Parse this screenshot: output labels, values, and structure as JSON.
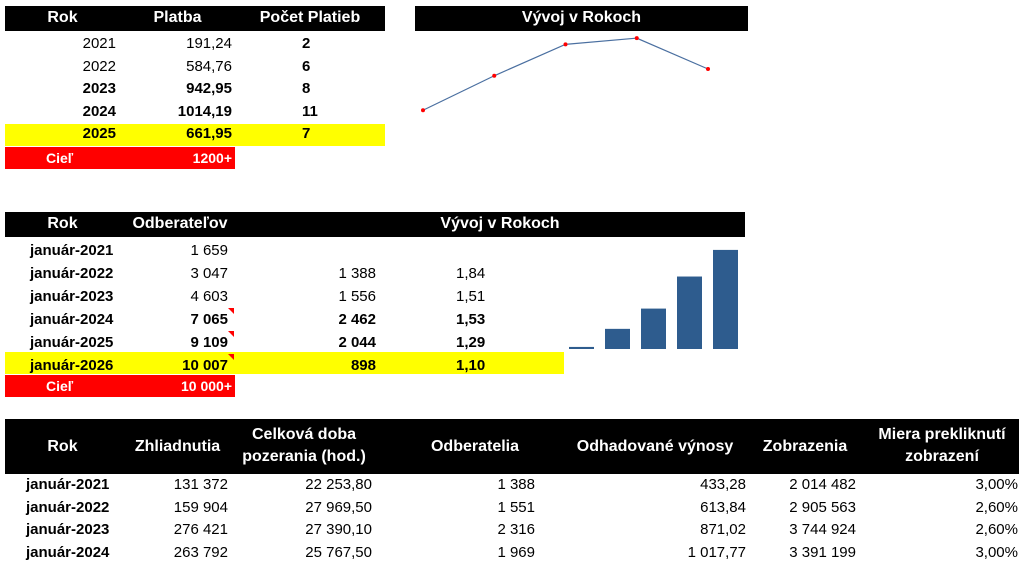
{
  "table1": {
    "headers": [
      "Rok",
      "Platba",
      "Počet Platieb"
    ],
    "rows": [
      {
        "year": "2021",
        "payment": "191,24",
        "count": "2",
        "bold": false
      },
      {
        "year": "2022",
        "payment": "584,76",
        "count": "6",
        "bold": false
      },
      {
        "year": "2023",
        "payment": "942,95",
        "count": "8",
        "bold": true
      },
      {
        "year": "2024",
        "payment": "1014,19",
        "count": "11",
        "bold": true
      },
      {
        "year": "2025",
        "payment": "661,95",
        "count": "7",
        "bold": true
      }
    ],
    "goal_label": "Cieľ",
    "goal_value": "1200+"
  },
  "chart1": {
    "title": "Vývoj v Rokoch",
    "chart_data": {
      "type": "line",
      "x": [
        "2021",
        "2022",
        "2023",
        "2024",
        "2025"
      ],
      "values": [
        191.24,
        584.76,
        942.95,
        1014.19,
        661.95
      ],
      "ylim": [
        0,
        1050
      ],
      "line_color": "#4a6fa0",
      "marker_color": "#ff0000"
    }
  },
  "table2": {
    "headers": [
      "Rok",
      "Odberateľov"
    ],
    "chart_title": "Vývoj v Rokoch",
    "rows": [
      {
        "year": "január-2021",
        "subs": "1 659",
        "diff": "",
        "ratio": "",
        "bold": false,
        "note": false
      },
      {
        "year": "január-2022",
        "subs": "3 047",
        "diff": "1 388",
        "ratio": "1,84",
        "bold": false,
        "note": false
      },
      {
        "year": "január-2023",
        "subs": "4 603",
        "diff": "1 556",
        "ratio": "1,51",
        "bold": false,
        "note": false
      },
      {
        "year": "január-2024",
        "subs": "7 065",
        "diff": "2 462",
        "ratio": "1,53",
        "bold": true,
        "note": true
      },
      {
        "year": "január-2025",
        "subs": "9 109",
        "diff": "2 044",
        "ratio": "1,29",
        "bold": true,
        "note": true
      },
      {
        "year": "január-2026",
        "subs": "10 007",
        "diff": "898",
        "ratio": "1,10",
        "bold": true,
        "note": true
      }
    ],
    "goal_label": "Cieľ",
    "goal_value": "10 000+"
  },
  "chart2": {
    "chart_data": {
      "type": "bar",
      "categories": [
        "január-2021",
        "január-2022",
        "január-2023",
        "január-2024",
        "január-2025",
        "január-2026"
      ],
      "values": [
        1659,
        3047,
        4603,
        7065,
        9109,
        10007
      ],
      "bar_color": "#2e5c8e",
      "highlight_color": "#dd0000",
      "ylim": [
        1500,
        10100
      ]
    }
  },
  "table3": {
    "headers": [
      "Rok",
      "Zhliadnutia",
      "Celková doba pozerania (hod.)",
      "Odberatelia",
      "Odhadované výnosy",
      "Zobrazenia",
      "Miera prekliknutí zobrazení"
    ],
    "rows": [
      [
        "január-2021",
        "131 372",
        "22 253,80",
        "1 388",
        "433,28",
        "2 014 482",
        "3,00%"
      ],
      [
        "január-2022",
        "159 904",
        "27 969,50",
        "1 551",
        "613,84",
        "2 905 563",
        "2,60%"
      ],
      [
        "január-2023",
        "276 421",
        "27 390,10",
        "2 316",
        "871,02",
        "3 744 924",
        "2,60%"
      ],
      [
        "január-2024",
        "263 792",
        "25 767,50",
        "1 969",
        "1 017,77",
        "3 391 199",
        "3,00%"
      ]
    ]
  }
}
